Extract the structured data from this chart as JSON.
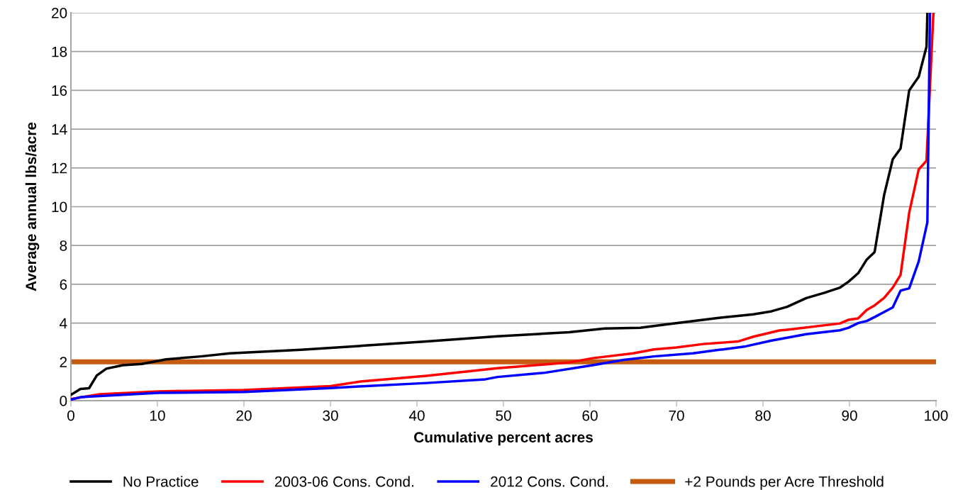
{
  "chart_data": {
    "type": "line",
    "xlabel": "Cumulative percent acres",
    "ylabel": "Average annual lbs/acre",
    "xlim": [
      0,
      100
    ],
    "xticks": [
      0,
      10,
      20,
      30,
      40,
      50,
      60,
      70,
      80,
      90,
      100
    ],
    "ylim": [
      0,
      20
    ],
    "yticks": [
      0,
      2,
      4,
      6,
      8,
      10,
      12,
      14,
      16,
      18,
      20
    ],
    "grid": "y",
    "legend": "bottom",
    "marker": "none",
    "line_style": "solid",
    "series": [
      {
        "name": "No Practice",
        "color": "#000000",
        "x": [
          0,
          1.1,
          2.1,
          3.0,
          4.1,
          6.0,
          8.2,
          11,
          15,
          18.4,
          26.6,
          33.7,
          41.1,
          49.3,
          57.6,
          61.7,
          65.8,
          68.8,
          74.9,
          78.9,
          81.0,
          82.8,
          85.0,
          87.1,
          88.9,
          89.9,
          91.0,
          92.0,
          92.9,
          94.0,
          95.0,
          95.9,
          96.9,
          98.0,
          98.9,
          99.0
        ],
        "values": [
          0.3,
          0.6,
          0.64,
          1.3,
          1.65,
          1.83,
          1.89,
          2.13,
          2.28,
          2.44,
          2.62,
          2.83,
          3.05,
          3.32,
          3.53,
          3.72,
          3.76,
          3.93,
          4.27,
          4.45,
          4.61,
          4.84,
          5.29,
          5.56,
          5.83,
          6.14,
          6.57,
          7.28,
          7.66,
          10.6,
          12.45,
          13.0,
          16.0,
          16.7,
          18.25,
          20
        ]
      },
      {
        "name": "2003-06 Cons. Cond.",
        "color": "#ff0000",
        "x": [
          0,
          3.3,
          10.1,
          20,
          30,
          33.7,
          41.1,
          49.3,
          57.6,
          60.3,
          65.0,
          67.4,
          70.0,
          73.1,
          77.1,
          78.9,
          81.9,
          82.8,
          88.9,
          89.9,
          91.0,
          92.0,
          92.9,
          94.0,
          95.0,
          95.9,
          96.9,
          98.0,
          98.9,
          99.7
        ],
        "values": [
          0.08,
          0.33,
          0.48,
          0.55,
          0.75,
          1.0,
          1.28,
          1.67,
          1.97,
          2.19,
          2.44,
          2.64,
          2.74,
          2.92,
          3.05,
          3.3,
          3.62,
          3.66,
          3.98,
          4.17,
          4.24,
          4.68,
          4.91,
          5.3,
          5.83,
          6.48,
          9.69,
          11.92,
          12.37,
          20
        ]
      },
      {
        "name": "2012 Cons. Cond.",
        "color": "#0000ff",
        "x": [
          0,
          1.1,
          10.1,
          20,
          30,
          33.7,
          41.1,
          47.9,
          49.3,
          54.8,
          60.3,
          63.9,
          67.4,
          71.9,
          78.0,
          81.0,
          85.0,
          88.9,
          89.9,
          91.0,
          92.0,
          92.9,
          94.0,
          95.0,
          95.9,
          96.9,
          98.0,
          99.0,
          99.3
        ],
        "values": [
          0.05,
          0.18,
          0.4,
          0.45,
          0.65,
          0.74,
          0.91,
          1.1,
          1.22,
          1.44,
          1.83,
          2.1,
          2.28,
          2.44,
          2.8,
          3.1,
          3.43,
          3.63,
          3.76,
          4.0,
          4.11,
          4.31,
          4.57,
          4.81,
          5.67,
          5.79,
          7.18,
          9.2,
          20
        ]
      }
    ],
    "ref_lines": [
      {
        "axis": "y",
        "value": 2,
        "label": "+2 Pounds per Acre Threshold",
        "color": "#c55a11",
        "line_style": "solid"
      }
    ]
  }
}
